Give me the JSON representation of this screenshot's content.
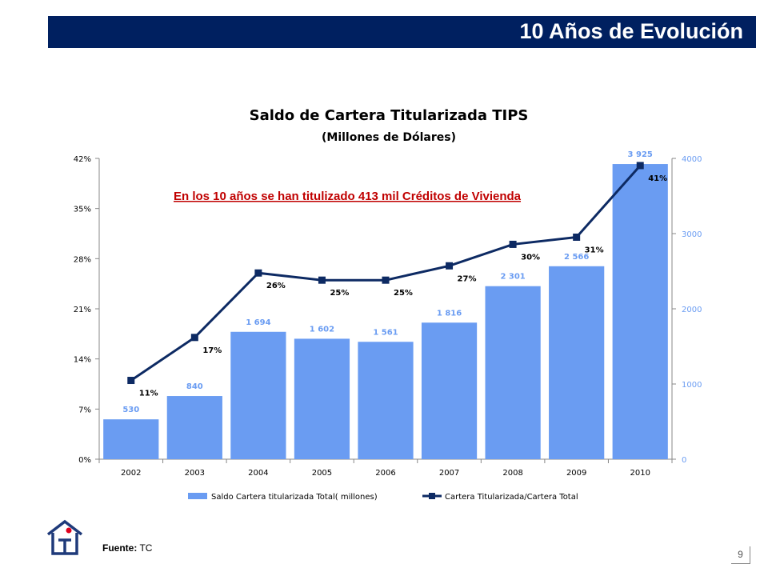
{
  "header": {
    "title": "10 Años de Evolución"
  },
  "footer": {
    "source_label": "Fuente:",
    "source_value": "TC",
    "page_number": "9"
  },
  "colors": {
    "header_bg": "#002060",
    "bar": "#6A9CF2",
    "line": "#0D2A63",
    "bar_label": "#6A9CF2",
    "annotation": "#C00000",
    "axis_right": "#6A9CF2"
  },
  "chart_data": {
    "type": "bar",
    "title": "Saldo de Cartera Titularizada TIPS",
    "subtitle": "(Millones de Dólares)",
    "annotation": "En los 10 años se han titulizado 413 mil Créditos de Vivienda",
    "categories": [
      "2002",
      "2003",
      "2004",
      "2005",
      "2006",
      "2007",
      "2008",
      "2009",
      "2010"
    ],
    "series": [
      {
        "name": "Saldo Cartera titularizada Total( millones)",
        "type": "bar",
        "axis": "right",
        "values": [
          530,
          840,
          1694,
          1602,
          1561,
          1816,
          2301,
          2566,
          3925
        ],
        "labels": [
          "530",
          "840",
          "1 694",
          "1 602",
          "1 561",
          "1 816",
          "2 301",
          "2 566",
          "3 925"
        ]
      },
      {
        "name": "Cartera Titularizada/Cartera Total",
        "type": "line",
        "axis": "left",
        "values": [
          11,
          17,
          26,
          25,
          25,
          27,
          30,
          31,
          41
        ],
        "labels": [
          "11%",
          "17%",
          "26%",
          "25%",
          "25%",
          "27%",
          "30%",
          "31%",
          "41%"
        ]
      }
    ],
    "y_left": {
      "range": [
        0,
        42
      ],
      "ticks": [
        "0%",
        "7%",
        "14%",
        "21%",
        "28%",
        "35%",
        "42%"
      ]
    },
    "y_right": {
      "range": [
        0,
        4000
      ],
      "ticks": [
        "0",
        "1000",
        "2000",
        "3000",
        "4000"
      ]
    },
    "legend": "bottom",
    "grid": false
  }
}
